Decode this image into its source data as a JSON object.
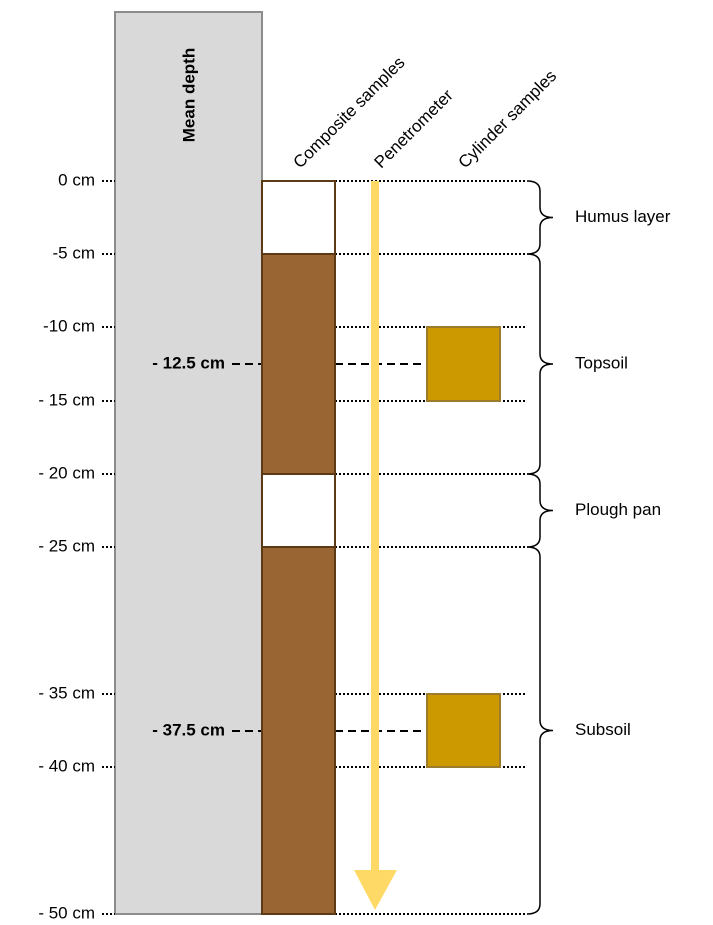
{
  "columns": [
    "Mean depth",
    "Composite samples",
    "Penetrometer",
    "Cylinder samples"
  ],
  "depths": [
    "0 cm",
    "-5 cm",
    "-10 cm",
    "- 15 cm",
    "- 20 cm",
    "- 25 cm",
    "- 35 cm",
    "- 40 cm",
    "- 50 cm"
  ],
  "sample_depths": [
    "- 12.5 cm",
    "- 37.5 cm"
  ],
  "layers": [
    "Humus layer",
    "Topsoil",
    "Plough pan",
    "Subsoil"
  ]
}
